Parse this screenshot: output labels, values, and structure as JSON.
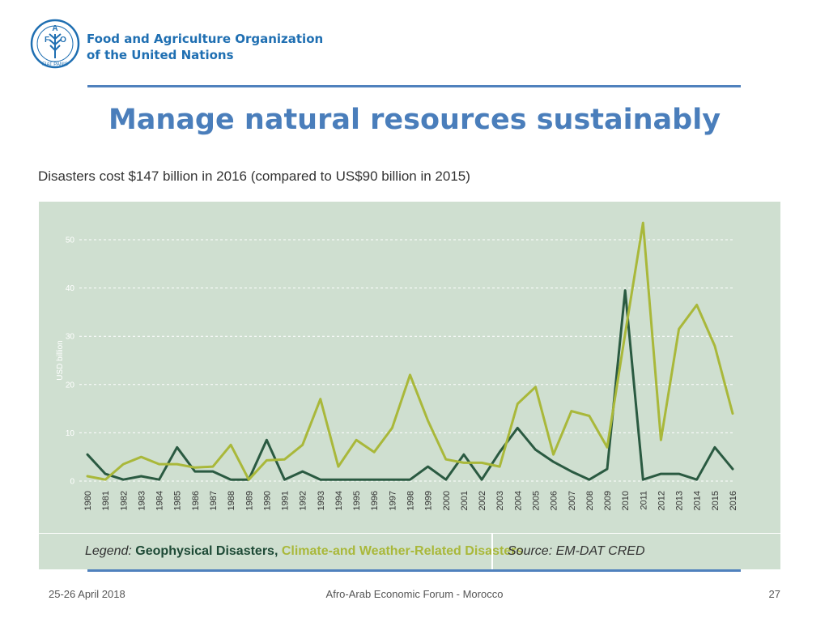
{
  "header": {
    "org_line1": "Food and Agriculture Organization",
    "org_line2": "of the United Nations",
    "logo_letters": [
      "F",
      "A",
      "O"
    ],
    "logo_motto": "FIAT PANIS"
  },
  "title": "Manage natural resources sustainably",
  "subtitle": "Disasters cost $147 billion in 2016 (compared to US$90 billion in 2015)",
  "legend": {
    "label": "Legend:",
    "geophysical": "Geophysical Disasters,",
    "climate": "Climate-and Weather-Related Disasters",
    "source": "Source: EM-DAT CRED"
  },
  "footer": {
    "date": "25-26 April 2018",
    "event": "Afro-Arab Economic Forum - Morocco",
    "page": "27"
  },
  "colors": {
    "brand_blue": "#1f6fb2",
    "accent_rule": "#4f81bd",
    "chart_background": "#cfdfd0",
    "geophysical_line": "#2a5a41",
    "climate_line": "#a9b83a"
  },
  "chart_data": {
    "type": "line",
    "ylabel": "USD billion",
    "xlabel": "",
    "ylim": [
      0,
      50
    ],
    "yticks": [
      0,
      10,
      20,
      30,
      40,
      50
    ],
    "grid": true,
    "legend_position": "bottom",
    "categories": [
      "1980",
      "1981",
      "1982",
      "1983",
      "1984",
      "1985",
      "1986",
      "1987",
      "1988",
      "1989",
      "1990",
      "1991",
      "1992",
      "1993",
      "1994",
      "1995",
      "1996",
      "1997",
      "1998",
      "1999",
      "2000",
      "2001",
      "2002",
      "2003",
      "2004",
      "2005",
      "2006",
      "2007",
      "2008",
      "2009",
      "2010",
      "2011",
      "2012",
      "2013",
      "2014",
      "2015",
      "2016"
    ],
    "series": [
      {
        "name": "Geophysical Disasters",
        "color": "#2a5a41",
        "values": [
          5.5,
          1.5,
          0.3,
          1,
          0.3,
          7,
          2,
          2,
          0.3,
          0.3,
          8.5,
          0.3,
          2,
          0.3,
          0.3,
          0.3,
          0.3,
          0.3,
          0.3,
          3,
          0.3,
          5.5,
          0.3,
          6,
          11,
          6.5,
          4,
          2,
          0.3,
          2.5,
          39.5,
          0.3,
          1.5,
          1.5,
          0.3,
          7,
          2.5
        ]
      },
      {
        "name": "Climate-and Weather-Related Disasters",
        "color": "#a9b83a",
        "values": [
          1,
          0.3,
          3.5,
          5,
          3.5,
          3.5,
          2.8,
          3,
          7.5,
          0.3,
          4.3,
          4.5,
          7.5,
          17,
          3,
          8.5,
          6,
          11,
          22,
          12.5,
          4.5,
          3.8,
          3.8,
          3,
          16,
          19.5,
          5.5,
          14.5,
          13.5,
          7,
          30.5,
          53.5,
          8.5,
          31.5,
          36.5,
          28,
          14
        ]
      }
    ]
  }
}
